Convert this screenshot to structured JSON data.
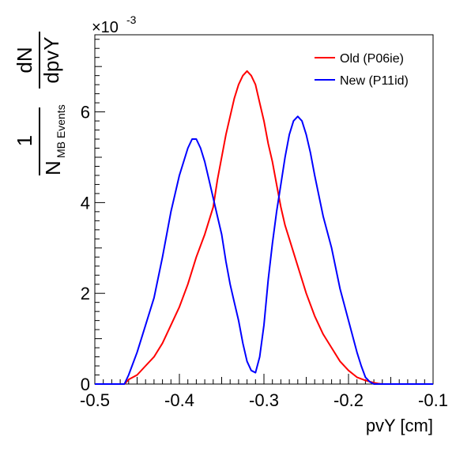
{
  "chart_data": {
    "type": "line",
    "title": "",
    "xlabel": "pvY [cm]",
    "ylabel": {
      "fraction_numerator": "1",
      "fraction_denominator_main": "N",
      "fraction_denominator_sub": "MB Events",
      "derivative_numerator": "dN",
      "derivative_denominator": "dpvY"
    },
    "y_multiplier": {
      "base": "×10",
      "exponent": "-3"
    },
    "xlim": [
      -0.5,
      -0.1
    ],
    "ylim": [
      0,
      7.7
    ],
    "x_ticks": [
      {
        "value": -0.5,
        "label": "-0.5"
      },
      {
        "value": -0.4,
        "label": "-0.4"
      },
      {
        "value": -0.3,
        "label": "-0.3"
      },
      {
        "value": -0.2,
        "label": "-0.2"
      },
      {
        "value": -0.1,
        "label": "-0.1"
      }
    ],
    "y_ticks": [
      {
        "value": 0,
        "label": "0"
      },
      {
        "value": 2,
        "label": "2"
      },
      {
        "value": 4,
        "label": "4"
      },
      {
        "value": 6,
        "label": "6"
      }
    ],
    "grid": false,
    "legend_position": "top-right",
    "series": [
      {
        "name": "Old (P06ie)",
        "color": "#ff0000",
        "x": [
          -0.5,
          -0.465,
          -0.46,
          -0.45,
          -0.44,
          -0.43,
          -0.42,
          -0.41,
          -0.4,
          -0.39,
          -0.38,
          -0.37,
          -0.36,
          -0.355,
          -0.35,
          -0.345,
          -0.34,
          -0.335,
          -0.33,
          -0.325,
          -0.32,
          -0.315,
          -0.31,
          -0.305,
          -0.3,
          -0.295,
          -0.29,
          -0.285,
          -0.28,
          -0.275,
          -0.27,
          -0.26,
          -0.25,
          -0.24,
          -0.23,
          -0.22,
          -0.21,
          -0.2,
          -0.19,
          -0.18,
          -0.17,
          -0.165,
          -0.16,
          -0.1
        ],
        "y": [
          0,
          0,
          0.1,
          0.2,
          0.4,
          0.6,
          0.9,
          1.3,
          1.7,
          2.2,
          2.8,
          3.3,
          3.9,
          4.5,
          5.0,
          5.5,
          5.9,
          6.3,
          6.6,
          6.8,
          6.9,
          6.8,
          6.6,
          6.2,
          5.8,
          5.3,
          4.9,
          4.4,
          3.9,
          3.5,
          3.2,
          2.6,
          2.0,
          1.5,
          1.1,
          0.8,
          0.5,
          0.3,
          0.15,
          0.08,
          0.03,
          0.01,
          0,
          0
        ]
      },
      {
        "name": "New (P11id)",
        "color": "#0000ff",
        "x": [
          -0.5,
          -0.465,
          -0.46,
          -0.45,
          -0.44,
          -0.43,
          -0.42,
          -0.41,
          -0.4,
          -0.39,
          -0.385,
          -0.38,
          -0.375,
          -0.37,
          -0.365,
          -0.36,
          -0.355,
          -0.35,
          -0.345,
          -0.34,
          -0.335,
          -0.33,
          -0.325,
          -0.32,
          -0.315,
          -0.31,
          -0.305,
          -0.3,
          -0.295,
          -0.29,
          -0.285,
          -0.28,
          -0.275,
          -0.27,
          -0.265,
          -0.26,
          -0.255,
          -0.25,
          -0.245,
          -0.24,
          -0.23,
          -0.22,
          -0.21,
          -0.2,
          -0.19,
          -0.185,
          -0.18,
          -0.175,
          -0.17,
          -0.1
        ],
        "y": [
          0,
          0,
          0.2,
          0.7,
          1.3,
          1.9,
          2.8,
          3.8,
          4.6,
          5.2,
          5.4,
          5.4,
          5.2,
          4.9,
          4.5,
          4.1,
          3.7,
          3.3,
          2.7,
          2.2,
          1.8,
          1.4,
          0.9,
          0.5,
          0.3,
          0.25,
          0.6,
          1.3,
          2.3,
          3.1,
          3.8,
          4.4,
          5.0,
          5.5,
          5.8,
          5.9,
          5.8,
          5.5,
          5.1,
          4.6,
          3.7,
          3.0,
          2.1,
          1.4,
          0.7,
          0.4,
          0.15,
          0.05,
          0,
          0
        ]
      }
    ]
  }
}
